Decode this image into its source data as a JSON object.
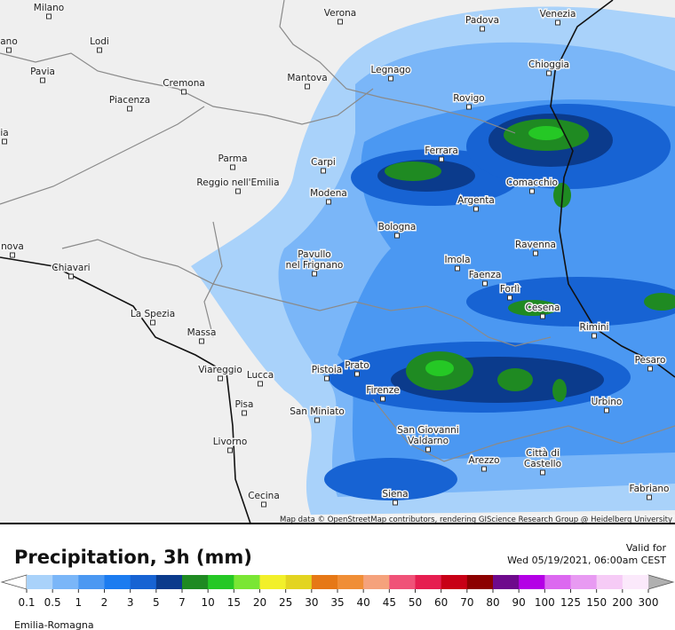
{
  "map": {
    "cities": [
      [
        "Milano"
      ],
      [
        "Verona"
      ],
      [
        "Padova"
      ],
      [
        "Venezia"
      ],
      [
        "ano"
      ],
      [
        "Lodi"
      ],
      [
        "Legnago"
      ],
      [
        "Chioggia"
      ],
      [
        "Pavia"
      ],
      [
        "Mantova"
      ],
      [
        "Cremona"
      ],
      [
        "Rovigo"
      ],
      [
        "Piacenza"
      ],
      [
        "ia"
      ],
      [
        "Ferrara"
      ],
      [
        "Parma"
      ],
      [
        "Carpi"
      ],
      [
        "Comacchio"
      ],
      [
        "Reggio nell'Emilia"
      ],
      [
        "Modena"
      ],
      [
        "Argenta"
      ],
      [
        "Bologna"
      ],
      [
        "Ravenna"
      ],
      [
        "nova"
      ],
      [
        "Imola"
      ],
      [
        "Pavullo",
        "nel Frignano"
      ],
      [
        "Chiavari"
      ],
      [
        "Faenza"
      ],
      [
        "Forlì"
      ],
      [
        "Cesena"
      ],
      [
        "La Spezia"
      ],
      [
        "Rimini"
      ],
      [
        "Massa"
      ],
      [
        "Pesaro"
      ],
      [
        "Viareggio"
      ],
      [
        "Pistoia"
      ],
      [
        "Prato"
      ],
      [
        "Lucca"
      ],
      [
        "Firenze"
      ],
      [
        "Urbino"
      ],
      [
        "Pisa"
      ],
      [
        "San Miniato"
      ],
      [
        "San Giovanni",
        "Valdarno"
      ],
      [
        "Livorno"
      ],
      [
        "Arezzo"
      ],
      [
        "Città di",
        "Castello"
      ],
      [
        "Siena"
      ],
      [
        "Cecina"
      ],
      [
        "Fabriano"
      ]
    ],
    "attribution": "Map data © OpenStreetMap contributors, rendering GIScience Research Group @ Heidelberg University"
  },
  "header": {
    "title": "Precipitation, 3h (mm)",
    "valid_label": "Valid for",
    "valid_time": "Wed 05/19/2021, 06:00am CEST"
  },
  "legend": {
    "ticks": [
      0.1,
      0.5,
      1,
      2,
      3,
      5,
      7,
      10,
      15,
      20,
      25,
      30,
      35,
      40,
      45,
      50,
      60,
      70,
      80,
      90,
      100,
      125,
      150,
      200,
      300
    ],
    "colors": [
      "#a9d2fa",
      "#7ab6f8",
      "#4b98f2",
      "#1c7cf0",
      "#1763d3",
      "#0b3b8c",
      "#1f8a22",
      "#25c825",
      "#7ae634",
      "#f2f02a",
      "#e3d420",
      "#e67816",
      "#f08e36",
      "#f5a27c",
      "#f05278",
      "#e61e50",
      "#c80016",
      "#8c0000",
      "#6e0a8c",
      "#b400e6",
      "#dc68f0",
      "#e89af2",
      "#f6cbf6",
      "#fbe9fb"
    ],
    "under_color": "#ffffff",
    "over_color": "#b0b0b0"
  },
  "footer": {
    "region": "Emilia-Romagna"
  }
}
